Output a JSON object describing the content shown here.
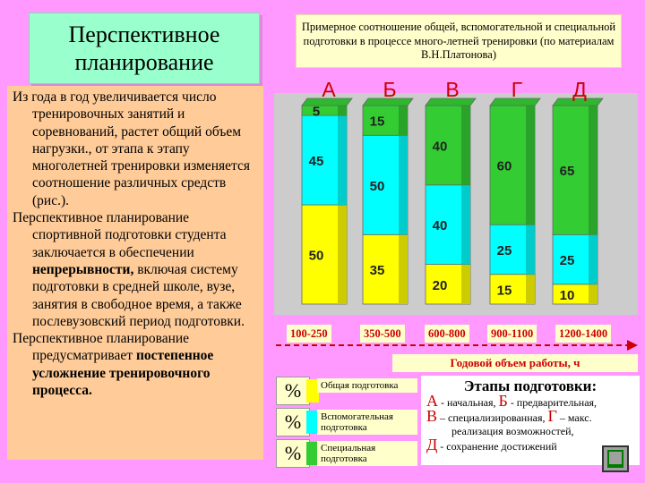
{
  "slide": {
    "title": "Перспективное планирование",
    "paragraphs": [
      "Из года в год увеличивается число тренировочных занятий и соревнований, растет общий объем нагрузки., от этапа к этапу многолетней тренировки изменяется соотношение различных средств (рис.).",
      "Перспективное планирование спортивной подготовки студента заключается в обеспечении непрерывности, включая систему подготовки в средней школе, вузе, занятия в свободное время, а также послевузовский период подготовки.",
      "Перспективное планирование предусматривает постепенное усложнение тренировочного процесса."
    ],
    "bold_phrases": [
      "непрерывности,",
      "постепенное усложнение тренировочного процесса."
    ],
    "chart_caption": "Примерное соотношение общей, вспомогательной и специальной подготовки в процессе много-летней тренировки (по материалам В.Н.Платонова)",
    "legend": [
      {
        "symbol": "%",
        "label": "Общая подготовка"
      },
      {
        "symbol": "%",
        "label": "Вспомогательная подготовка"
      },
      {
        "symbol": "%",
        "label": "Специальная подготовка"
      }
    ],
    "stages": {
      "heading": "Этапы подготовки:",
      "lines": [
        [
          "А",
          " - начальная, ",
          "Б",
          " - предварительная,"
        ],
        [
          "В",
          " – специализированная, ",
          "Г",
          " – макс."
        ],
        [
          "",
          "реализация возможностей,",
          "",
          ""
        ],
        [
          "Д",
          " - сохранение достижений",
          "",
          ""
        ]
      ]
    }
  },
  "chart_data": {
    "type": "bar",
    "stacked": true,
    "categories": [
      "А",
      "Б",
      "В",
      "Г",
      "Д"
    ],
    "x_ranges": [
      "100-250",
      "350-500",
      "600-800",
      "900-1100",
      "1200-1400"
    ],
    "xlabel": "Годовой объем работы, ч",
    "series": [
      {
        "name": "Общая подготовка",
        "color": "#ffff00",
        "values": [
          50,
          35,
          20,
          15,
          10
        ]
      },
      {
        "name": "Вспомогательная подготовка",
        "color": "#00ffff",
        "values": [
          45,
          50,
          40,
          25,
          25
        ]
      },
      {
        "name": "Специальная подготовка",
        "color": "#33cc33",
        "values": [
          5,
          15,
          40,
          60,
          65
        ]
      }
    ],
    "ylim": [
      0,
      100
    ],
    "grid": false
  }
}
